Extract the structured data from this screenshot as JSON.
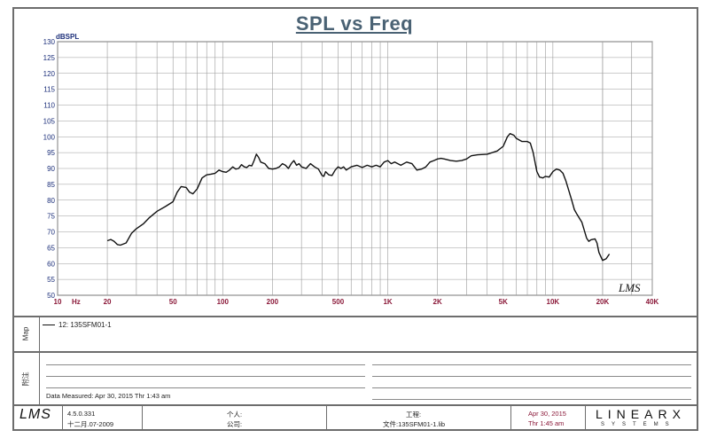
{
  "chart_data": {
    "type": "line",
    "title": "SPL vs Freq",
    "ylabel": "dBSPL",
    "xlabel_unit": "Hz",
    "x_scale": "log",
    "xlim": [
      10,
      40000
    ],
    "ylim": [
      50,
      130
    ],
    "y_ticks": [
      50,
      55,
      60,
      65,
      70,
      75,
      80,
      85,
      90,
      95,
      100,
      105,
      110,
      115,
      120,
      125,
      130
    ],
    "x_tick_labels": [
      {
        "value": 10,
        "label": "10"
      },
      {
        "value": 20,
        "label": "20"
      },
      {
        "value": 50,
        "label": "50"
      },
      {
        "value": 100,
        "label": "100"
      },
      {
        "value": 200,
        "label": "200"
      },
      {
        "value": 500,
        "label": "500"
      },
      {
        "value": 1000,
        "label": "1K"
      },
      {
        "value": 2000,
        "label": "2K"
      },
      {
        "value": 5000,
        "label": "5K"
      },
      {
        "value": 10000,
        "label": "10K"
      },
      {
        "value": 20000,
        "label": "20K"
      },
      {
        "value": 40000,
        "label": "40K"
      }
    ],
    "grid": true,
    "series": [
      {
        "name": "12: 135SFM01-1",
        "color": "#111111",
        "points": [
          [
            20,
            67.2
          ],
          [
            21,
            67.6
          ],
          [
            22,
            67.0
          ],
          [
            23,
            66.0
          ],
          [
            24,
            65.8
          ],
          [
            26,
            66.5
          ],
          [
            28,
            69.5
          ],
          [
            30,
            71.0
          ],
          [
            33,
            72.5
          ],
          [
            36,
            74.5
          ],
          [
            40,
            76.5
          ],
          [
            45,
            78.0
          ],
          [
            50,
            79.5
          ],
          [
            53,
            82.5
          ],
          [
            56,
            84.3
          ],
          [
            60,
            84.0
          ],
          [
            63,
            82.5
          ],
          [
            66,
            82.0
          ],
          [
            70,
            83.5
          ],
          [
            75,
            87.0
          ],
          [
            80,
            88.0
          ],
          [
            85,
            88.2
          ],
          [
            90,
            88.5
          ],
          [
            95,
            89.5
          ],
          [
            100,
            89.0
          ],
          [
            105,
            88.8
          ],
          [
            110,
            89.5
          ],
          [
            115,
            90.5
          ],
          [
            120,
            89.8
          ],
          [
            125,
            90.0
          ],
          [
            130,
            91.2
          ],
          [
            135,
            90.5
          ],
          [
            140,
            90.3
          ],
          [
            145,
            91.0
          ],
          [
            150,
            90.8
          ],
          [
            155,
            92.5
          ],
          [
            160,
            94.5
          ],
          [
            165,
            93.5
          ],
          [
            170,
            92.0
          ],
          [
            180,
            91.5
          ],
          [
            190,
            90.0
          ],
          [
            200,
            89.8
          ],
          [
            210,
            90.0
          ],
          [
            220,
            90.5
          ],
          [
            230,
            91.5
          ],
          [
            240,
            91.0
          ],
          [
            250,
            90.0
          ],
          [
            260,
            91.5
          ],
          [
            270,
            92.5
          ],
          [
            280,
            91.0
          ],
          [
            290,
            91.5
          ],
          [
            300,
            90.5
          ],
          [
            320,
            90.0
          ],
          [
            340,
            91.5
          ],
          [
            360,
            90.5
          ],
          [
            380,
            89.8
          ],
          [
            400,
            87.8
          ],
          [
            410,
            87.5
          ],
          [
            420,
            89.0
          ],
          [
            440,
            88.0
          ],
          [
            460,
            87.8
          ],
          [
            480,
            89.5
          ],
          [
            500,
            90.5
          ],
          [
            520,
            90.0
          ],
          [
            540,
            90.5
          ],
          [
            560,
            89.5
          ],
          [
            600,
            90.5
          ],
          [
            650,
            91.0
          ],
          [
            700,
            90.3
          ],
          [
            750,
            91.0
          ],
          [
            800,
            90.5
          ],
          [
            850,
            91.0
          ],
          [
            900,
            90.5
          ],
          [
            950,
            92.0
          ],
          [
            1000,
            92.5
          ],
          [
            1050,
            91.5
          ],
          [
            1100,
            92.0
          ],
          [
            1150,
            91.5
          ],
          [
            1200,
            91.0
          ],
          [
            1300,
            92.0
          ],
          [
            1400,
            91.5
          ],
          [
            1500,
            89.5
          ],
          [
            1600,
            89.8
          ],
          [
            1700,
            90.5
          ],
          [
            1800,
            92.0
          ],
          [
            1900,
            92.5
          ],
          [
            2000,
            93.0
          ],
          [
            2100,
            93.2
          ],
          [
            2200,
            93.0
          ],
          [
            2400,
            92.5
          ],
          [
            2600,
            92.3
          ],
          [
            2800,
            92.5
          ],
          [
            3000,
            93.0
          ],
          [
            3200,
            94.0
          ],
          [
            3500,
            94.3
          ],
          [
            4000,
            94.5
          ],
          [
            4300,
            95.0
          ],
          [
            4600,
            95.5
          ],
          [
            5000,
            97.0
          ],
          [
            5300,
            100.0
          ],
          [
            5500,
            101.0
          ],
          [
            5800,
            100.5
          ],
          [
            6000,
            99.5
          ],
          [
            6500,
            98.5
          ],
          [
            7000,
            98.5
          ],
          [
            7300,
            98.0
          ],
          [
            7600,
            95.0
          ],
          [
            8000,
            89.0
          ],
          [
            8300,
            87.3
          ],
          [
            8700,
            87.0
          ],
          [
            9000,
            87.5
          ],
          [
            9500,
            87.3
          ],
          [
            10000,
            89.0
          ],
          [
            10500,
            89.8
          ],
          [
            11000,
            89.5
          ],
          [
            11500,
            88.5
          ],
          [
            12000,
            86.0
          ],
          [
            13000,
            80.0
          ],
          [
            13500,
            77.0
          ],
          [
            14000,
            75.5
          ],
          [
            15000,
            73.0
          ],
          [
            16000,
            68.0
          ],
          [
            16500,
            67.0
          ],
          [
            17000,
            67.5
          ],
          [
            18000,
            67.8
          ],
          [
            18500,
            66.5
          ],
          [
            19000,
            63.5
          ],
          [
            20000,
            61.0
          ],
          [
            21000,
            61.5
          ],
          [
            22000,
            63.0
          ]
        ]
      }
    ]
  },
  "legend": {
    "entry": "12: 135SFM01-1"
  },
  "panels": {
    "legend_panel_label": "Map",
    "notes_panel_label": "附注",
    "measured": "Data Measured: Apr 30, 2015  Thr  1:43 am"
  },
  "footer": {
    "version": "4.5.0.331",
    "version_date": "十二月.07-2009",
    "person_label": "个人:",
    "company_label": "公司:",
    "project_label": "工程:",
    "file_label": "文件:135SFM01-1.lib",
    "date": "Apr 30, 2015",
    "time": "Thr  1:45 am",
    "brand_top": "LINEARX",
    "brand_bottom": "SYSTEMS",
    "logo_text": "LMS"
  },
  "colors": {
    "frame": "#6d6d6d",
    "grid": "#9a9a9a",
    "xtick": "#8b1a3a",
    "title": "#4a6274"
  }
}
